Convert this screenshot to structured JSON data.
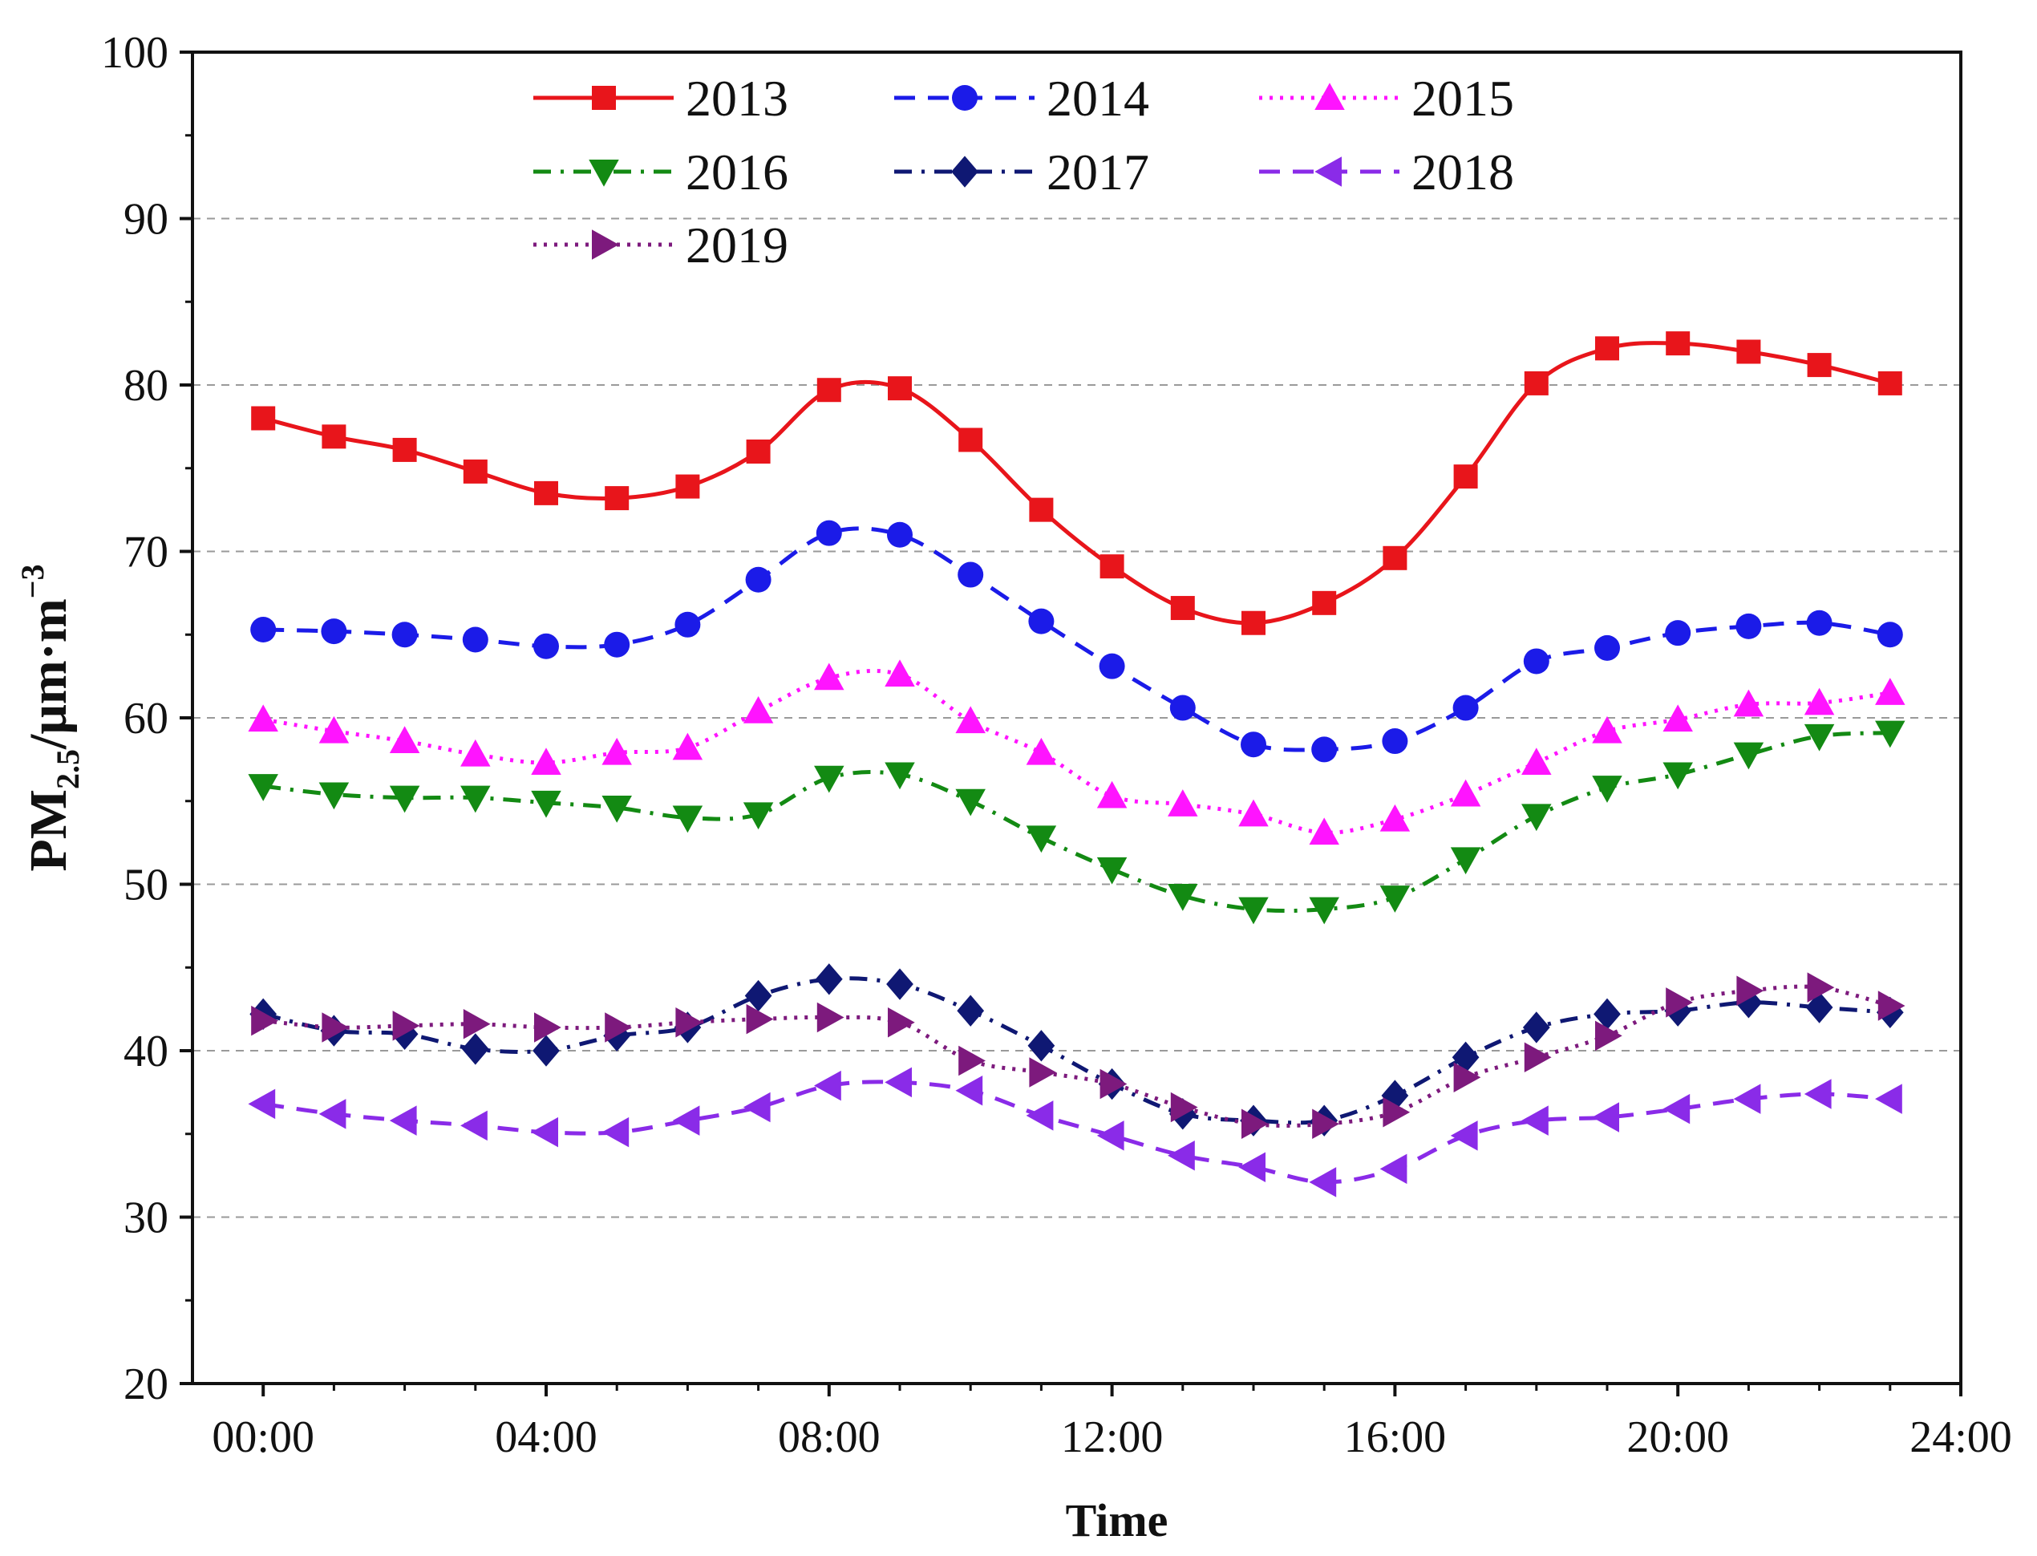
{
  "chart_data": {
    "type": "line",
    "title": "",
    "xlabel": "Time",
    "ylabel_parts": {
      "prefix": "PM",
      "subscript": "2.5",
      "unit": "/μm·m",
      "superscript": "−3"
    },
    "xlim": [
      -1,
      24
    ],
    "ylim": [
      20,
      100
    ],
    "yticks": [
      20,
      30,
      40,
      50,
      60,
      70,
      80,
      90,
      100
    ],
    "xtick_values": [
      0,
      4,
      8,
      12,
      16,
      20,
      24
    ],
    "xtick_labels": [
      "00:00",
      "04:00",
      "08:00",
      "12:00",
      "16:00",
      "20:00",
      "24:00"
    ],
    "grid": "horizontal-dashed",
    "legend_position": "top-left",
    "x": [
      0,
      1,
      2,
      3,
      4,
      5,
      6,
      7,
      8,
      9,
      10,
      11,
      12,
      13,
      14,
      15,
      16,
      17,
      18,
      19,
      20,
      21,
      22,
      23
    ],
    "series": [
      {
        "name": "2013",
        "color": "#e8151b",
        "marker": "square",
        "line": "solid",
        "values": [
          78.0,
          76.9,
          76.1,
          74.8,
          73.5,
          73.2,
          73.9,
          76.0,
          79.7,
          79.8,
          76.7,
          72.5,
          69.1,
          66.6,
          65.7,
          66.9,
          69.6,
          74.5,
          80.1,
          82.2,
          82.5,
          82.0,
          81.2,
          80.1
        ]
      },
      {
        "name": "2014",
        "color": "#1b1be8",
        "marker": "circle",
        "line": "dashed",
        "values": [
          65.3,
          65.2,
          65.0,
          64.7,
          64.3,
          64.4,
          65.6,
          68.3,
          71.1,
          71.0,
          68.6,
          65.8,
          63.1,
          60.6,
          58.4,
          58.1,
          58.6,
          60.6,
          63.4,
          64.2,
          65.1,
          65.5,
          65.7,
          65.0
        ]
      },
      {
        "name": "2015",
        "color": "#ff14ff",
        "marker": "triangle-up",
        "line": "dotted",
        "values": [
          59.9,
          59.2,
          58.6,
          57.8,
          57.3,
          57.9,
          58.2,
          60.4,
          62.4,
          62.6,
          59.8,
          57.9,
          55.3,
          54.8,
          54.2,
          53.1,
          53.9,
          55.4,
          57.3,
          59.2,
          59.9,
          60.8,
          60.9,
          61.5
        ]
      },
      {
        "name": "2016",
        "color": "#138a13",
        "marker": "triangle-down",
        "line": "dash-dot",
        "values": [
          55.9,
          55.4,
          55.2,
          55.2,
          54.9,
          54.6,
          54.0,
          54.2,
          56.4,
          56.6,
          55.0,
          52.8,
          50.9,
          49.3,
          48.5,
          48.5,
          49.2,
          51.5,
          54.1,
          55.8,
          56.6,
          57.8,
          58.9,
          59.1
        ]
      },
      {
        "name": "2017",
        "color": "#0f1873",
        "marker": "diamond",
        "line": "dash-dot",
        "values": [
          42.2,
          41.2,
          41.0,
          40.1,
          40.0,
          40.9,
          41.4,
          43.3,
          44.3,
          44.0,
          42.4,
          40.3,
          38.0,
          36.2,
          35.8,
          35.8,
          37.3,
          39.6,
          41.4,
          42.2,
          42.4,
          42.9,
          42.6,
          42.3
        ]
      },
      {
        "name": "2018",
        "color": "#8a2be8",
        "marker": "triangle-left",
        "line": "dashed",
        "values": [
          36.8,
          36.2,
          35.8,
          35.5,
          35.1,
          35.1,
          35.8,
          36.6,
          37.9,
          38.1,
          37.6,
          36.1,
          34.9,
          33.7,
          33.0,
          32.1,
          32.9,
          34.9,
          35.8,
          36.0,
          36.5,
          37.1,
          37.4,
          37.1
        ]
      },
      {
        "name": "2019",
        "color": "#7d1a7d",
        "marker": "triangle-right",
        "line": "dotted",
        "values": [
          41.8,
          41.4,
          41.5,
          41.6,
          41.4,
          41.4,
          41.7,
          41.9,
          42.0,
          41.7,
          39.4,
          38.7,
          38.0,
          36.6,
          35.6,
          35.6,
          36.3,
          38.4,
          39.6,
          40.9,
          42.9,
          43.6,
          43.8,
          42.7
        ]
      }
    ]
  }
}
